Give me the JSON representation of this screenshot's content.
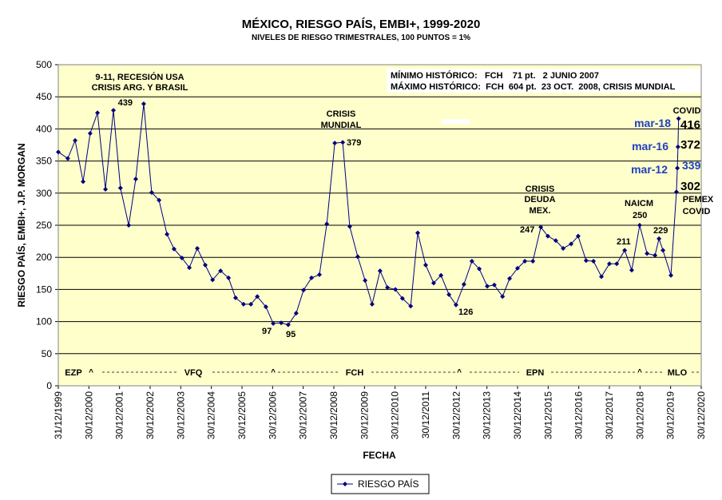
{
  "chart_data": {
    "type": "line",
    "title": "MÉXICO, RIESGO PAÍS, EMBI+, 1999-2020",
    "subtitle": "NIVELES DE RIESGO TRIMESTRALES, 100 PUNTOS = 1%",
    "x_label": "FECHA",
    "y_label": "RIESGO PAÍS, EMBI+, J.P. MORGAN",
    "xlim": [
      2000,
      2021
    ],
    "ylim": [
      0,
      500
    ],
    "yticks": [
      0,
      50,
      100,
      150,
      200,
      250,
      300,
      350,
      400,
      450,
      500
    ],
    "xticks": [
      {
        "value": 2000,
        "label": "31/12/1999"
      },
      {
        "value": 2001,
        "label": "30/12/2000"
      },
      {
        "value": 2002,
        "label": "30/12/2001"
      },
      {
        "value": 2003,
        "label": "30/12/2002"
      },
      {
        "value": 2004,
        "label": "30/12/2003"
      },
      {
        "value": 2005,
        "label": "30/12/2004"
      },
      {
        "value": 2006,
        "label": "30/12/2005"
      },
      {
        "value": 2007,
        "label": "30/12/2006"
      },
      {
        "value": 2008,
        "label": "30/12/2007"
      },
      {
        "value": 2009,
        "label": "30/12/2008"
      },
      {
        "value": 2010,
        "label": "30/12/2009"
      },
      {
        "value": 2011,
        "label": "30/12/2010"
      },
      {
        "value": 2012,
        "label": "30/12/2011"
      },
      {
        "value": 2013,
        "label": "30/12/2012"
      },
      {
        "value": 2014,
        "label": "30/12/2013"
      },
      {
        "value": 2015,
        "label": "30/12/2014"
      },
      {
        "value": 2016,
        "label": "30/12/2015"
      },
      {
        "value": 2017,
        "label": "30/12/2016"
      },
      {
        "value": 2018,
        "label": "30/12/2017"
      },
      {
        "value": 2019,
        "label": "30/12/2018"
      },
      {
        "value": 2020,
        "label": "30/12/2019"
      },
      {
        "value": 2021,
        "label": "30/12/2020"
      }
    ],
    "grid": true,
    "x": [
      2000.0,
      2000.31,
      2000.55,
      2000.81,
      2001.04,
      2001.28,
      2001.54,
      2001.8,
      2002.03,
      2002.3,
      2002.53,
      2002.79,
      2003.05,
      2003.29,
      2003.55,
      2003.78,
      2004.04,
      2004.28,
      2004.54,
      2004.8,
      2005.04,
      2005.3,
      2005.56,
      2005.79,
      2006.05,
      2006.29,
      2006.5,
      2006.78,
      2007.02,
      2007.28,
      2007.51,
      2007.77,
      2008.01,
      2008.27,
      2008.53,
      2008.77,
      2009.03,
      2009.29,
      2009.52,
      2009.78,
      2010.02,
      2010.25,
      2010.51,
      2010.75,
      2011.01,
      2011.24,
      2011.51,
      2011.74,
      2012.0,
      2012.26,
      2012.5,
      2012.76,
      2012.99,
      2013.25,
      2013.51,
      2013.75,
      2014.01,
      2014.24,
      2014.51,
      2014.74,
      2015.0,
      2015.24,
      2015.5,
      2015.76,
      2015.99,
      2016.25,
      2016.49,
      2016.75,
      2016.98,
      2017.24,
      2017.48,
      2017.74,
      2018.0,
      2018.24,
      2018.5,
      2018.73,
      2018.99,
      2019.23,
      2019.49,
      2019.62,
      2019.75,
      2020.01,
      2020.19,
      2020.22,
      2020.24,
      2020.26
    ],
    "series": [
      {
        "name": "RIESGO PAÍS",
        "color": "#000080",
        "values": [
          364,
          354,
          382,
          318,
          393,
          425,
          306,
          429,
          308,
          250,
          322,
          439,
          301,
          289,
          236,
          213,
          199,
          184,
          214,
          188,
          165,
          179,
          168,
          137,
          127,
          127,
          139,
          123,
          97,
          98,
          95,
          113,
          149,
          168,
          173,
          252,
          378,
          379,
          248,
          201,
          164,
          127,
          179,
          153,
          150,
          136,
          124,
          238,
          188,
          160,
          172,
          142,
          126,
          158,
          194,
          182,
          155,
          157,
          139,
          167,
          183,
          194,
          194,
          247,
          233,
          226,
          214,
          221,
          233,
          195,
          194,
          170,
          190,
          190,
          211,
          180,
          250,
          206,
          203,
          229,
          211,
          172,
          302,
          339,
          372,
          416
        ]
      }
    ],
    "annotations": [
      "9-11, RECESIÓN USA",
      "CRISIS ARG. Y BRASIL",
      "CRISIS",
      "MUNDIAL",
      "CRISIS",
      "DEUDA",
      "MEX.",
      "NAICM",
      "COVID",
      "PEMEX",
      "COVID",
      "mar-18",
      "mar-16",
      "mar-12",
      "MÍNIMO HISTÓRICO:   FCH    71 pt.   2 JUNIO 2007",
      "MÁXIMO HISTÓRICO:  FCH  604 pt.  23 OCT.  2008, CRISIS MUNDIAL",
      "EZP",
      "VFQ",
      "FCH",
      "EPN",
      "MLO",
      "^",
      "^",
      "^",
      "^"
    ]
  }
}
